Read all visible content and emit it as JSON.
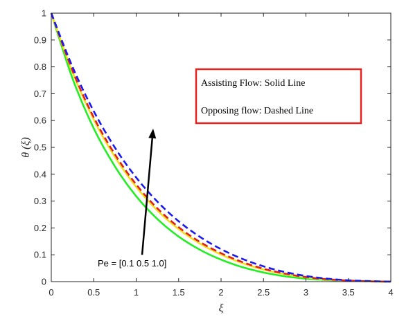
{
  "chart_data": {
    "type": "line",
    "xlabel": "ξ",
    "ylabel": "θ (ξ)",
    "xlim": [
      0,
      4
    ],
    "ylim": [
      0,
      1
    ],
    "xticks": [
      0,
      0.5,
      1,
      1.5,
      2,
      2.5,
      3,
      3.5,
      4
    ],
    "yticks": [
      0,
      0.1,
      0.2,
      0.3,
      0.4,
      0.5,
      0.6,
      0.7,
      0.8,
      0.9,
      1
    ],
    "xtick_labels": [
      "0",
      "0.5",
      "1",
      "1.5",
      "2",
      "2.5",
      "3",
      "3.5",
      "4"
    ],
    "ytick_labels": [
      "0",
      "0.1",
      "0.2",
      "0.3",
      "0.4",
      "0.5",
      "0.6",
      "0.7",
      "0.8",
      "0.9",
      "1"
    ],
    "grid": false,
    "legend_box": {
      "line1": "Assisting Flow:  Solid Line",
      "line2": "Opposing flow: Dashed Line",
      "border_color": "#e8221f",
      "placement": "top-right"
    },
    "annotation": {
      "text": "Pe = [0.1  0.5  1.0]",
      "arrow_from": [
        1.07,
        0.1
      ],
      "arrow_to": [
        1.2,
        0.57
      ]
    },
    "x": [
      0,
      0.25,
      0.5,
      0.75,
      1,
      1.25,
      1.5,
      1.75,
      2,
      2.25,
      2.5,
      2.75,
      3,
      3.25,
      3.5,
      3.75,
      4
    ],
    "series": [
      {
        "color": "#22ee22",
        "style": "solid",
        "values": [
          1.0,
          0.757,
          0.571,
          0.429,
          0.318,
          0.233,
          0.168,
          0.119,
          0.082,
          0.054,
          0.034,
          0.02,
          0.011,
          0.006,
          0.003,
          0.001,
          0.0
        ]
      },
      {
        "color": "#f0e020",
        "style": "solid",
        "values": [
          1.0,
          0.78,
          0.604,
          0.464,
          0.353,
          0.265,
          0.196,
          0.142,
          0.101,
          0.069,
          0.045,
          0.028,
          0.016,
          0.008,
          0.004,
          0.001,
          0.0
        ]
      },
      {
        "color": "#e02020",
        "style": "dashed",
        "values": [
          1.0,
          0.786,
          0.612,
          0.474,
          0.362,
          0.273,
          0.203,
          0.148,
          0.106,
          0.073,
          0.048,
          0.03,
          0.017,
          0.009,
          0.004,
          0.001,
          0.0
        ]
      },
      {
        "color": "#1a1aee",
        "style": "dashed",
        "values": [
          1.0,
          0.8,
          0.635,
          0.499,
          0.388,
          0.298,
          0.225,
          0.167,
          0.121,
          0.085,
          0.057,
          0.036,
          0.021,
          0.011,
          0.005,
          0.002,
          0.0
        ]
      }
    ],
    "colors": {
      "axis": "#262626",
      "background": "#ffffff",
      "arrow": "#000000"
    }
  }
}
